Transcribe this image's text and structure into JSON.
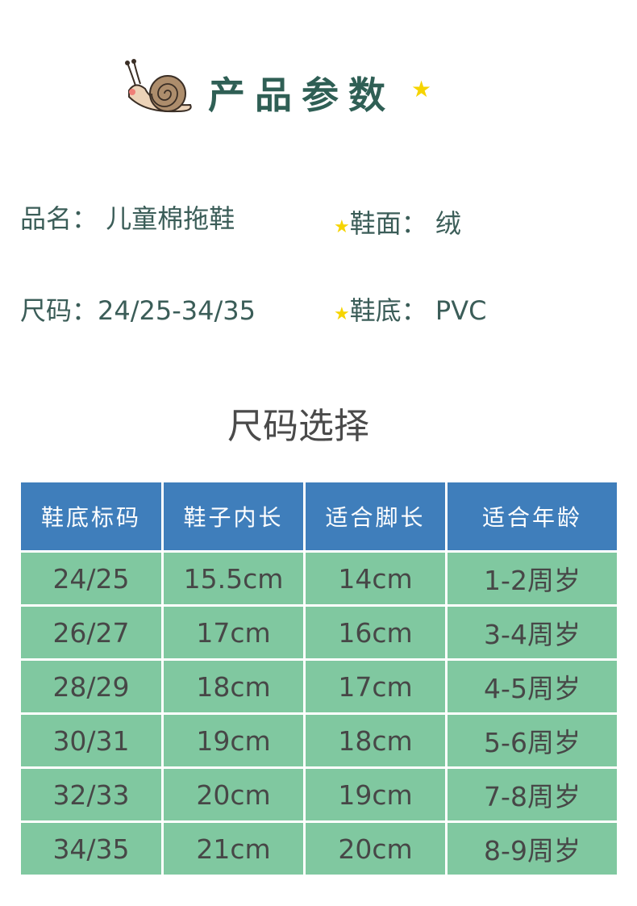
{
  "header": {
    "title": "产品参数",
    "icons": [
      "snail-icon",
      "star-icon"
    ]
  },
  "info": [
    {
      "label": "品名：",
      "value": "儿童棉拖鞋",
      "star": false
    },
    {
      "label": "鞋面：",
      "value": "绒",
      "star": true
    },
    {
      "label": "尺码：",
      "value": "24/25-34/35",
      "star": false
    },
    {
      "label": "鞋底：",
      "value": "PVC",
      "star": true
    }
  ],
  "size_section": {
    "title": "尺码选择"
  },
  "table": {
    "columns": [
      "鞋底标码",
      "鞋子内长",
      "适合脚长",
      "适合年龄"
    ],
    "rows": [
      [
        "24/25",
        "15.5cm",
        "14cm",
        "1-2周岁"
      ],
      [
        "26/27",
        "17cm",
        "16cm",
        "3-4周岁"
      ],
      [
        "28/29",
        "18cm",
        "17cm",
        "4-5周岁"
      ],
      [
        "30/31",
        "19cm",
        "18cm",
        "5-6周岁"
      ],
      [
        "32/33",
        "20cm",
        "19cm",
        "7-8周岁"
      ],
      [
        "34/35",
        "21cm",
        "20cm",
        "8-9周岁"
      ]
    ]
  },
  "colors": {
    "header_blue": "#3f7ebb",
    "row_green": "#80c8a0",
    "title_teal": "#2f5f55",
    "star_yellow": "#f6d400"
  }
}
